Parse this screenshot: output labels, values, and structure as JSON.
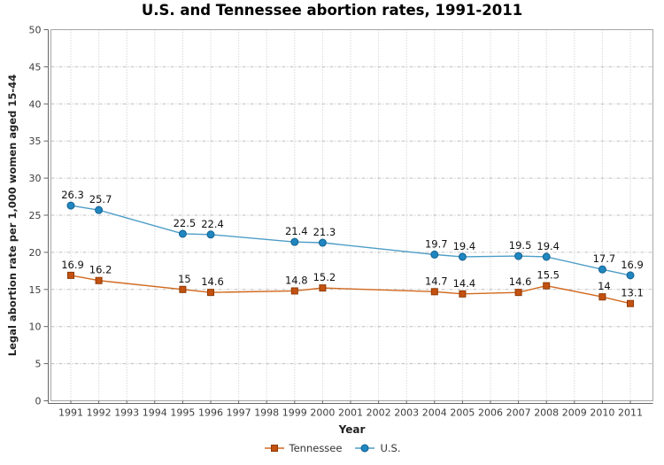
{
  "chart_data": {
    "type": "line",
    "title": "U.S. and Tennessee abortion rates, 1991-2011",
    "xlabel": "Year",
    "ylabel": "Legal abortion rate per 1,000 women aged 15-44",
    "ylim": [
      0,
      50
    ],
    "y_ticks": [
      0,
      5,
      10,
      15,
      20,
      25,
      30,
      35,
      40,
      45,
      50
    ],
    "x_ticks": [
      1991,
      1992,
      1993,
      1994,
      1995,
      1996,
      1997,
      1998,
      1999,
      2000,
      2001,
      2002,
      2003,
      2004,
      2005,
      2006,
      2007,
      2008,
      2009,
      2010,
      2011
    ],
    "x": [
      1991,
      1992,
      1995,
      1996,
      1999,
      2000,
      2004,
      2005,
      2007,
      2008,
      2010,
      2011
    ],
    "series": [
      {
        "name": "Tennessee",
        "marker": "square",
        "color": "#c4510f",
        "marker_stroke": "#8e3a05",
        "line_color": "#d2691e",
        "values": [
          16.9,
          16.2,
          15,
          14.6,
          14.8,
          15.2,
          14.7,
          14.4,
          14.6,
          15.5,
          14,
          13.1
        ]
      },
      {
        "name": "U.S.",
        "marker": "circle",
        "color": "#1f86c0",
        "marker_stroke": "#14618f",
        "line_color": "#4d9dc8",
        "values": [
          26.3,
          25.7,
          22.5,
          22.4,
          21.4,
          21.3,
          19.7,
          19.4,
          19.5,
          19.4,
          17.7,
          16.9
        ]
      }
    ],
    "grid": true,
    "legend_position": "bottom",
    "colors": {
      "grid_line": "#c6c6c6",
      "frame": "#a6a6a6",
      "axis_line": "#666666",
      "tick_label": "#3d3d3d",
      "value_label": "#111111"
    }
  }
}
